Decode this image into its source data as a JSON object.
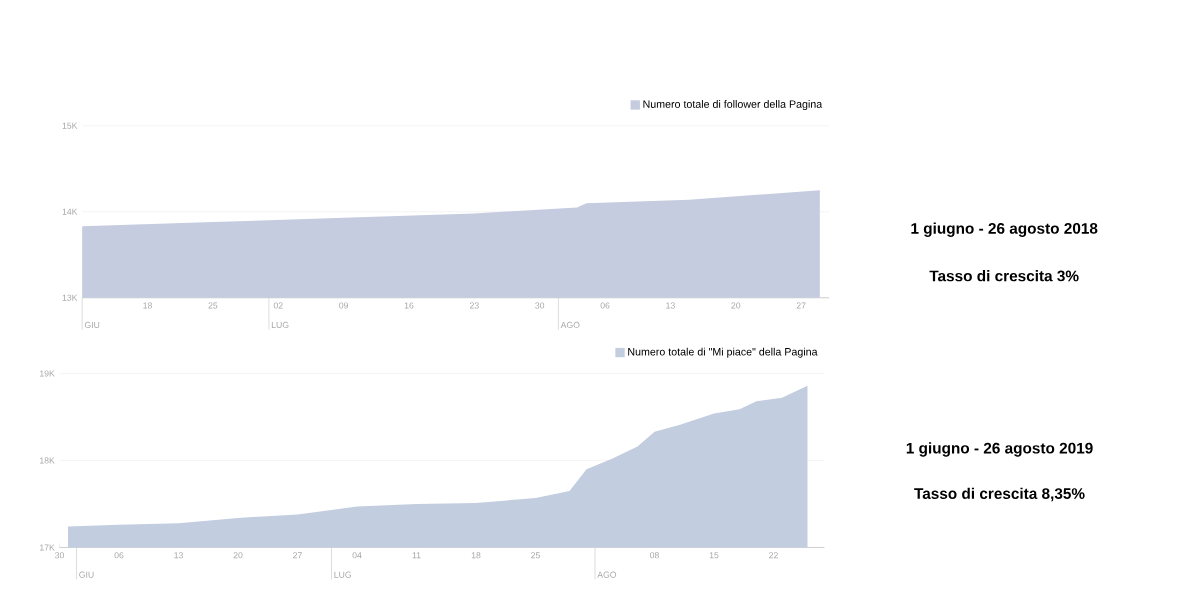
{
  "chart_data": [
    {
      "type": "area",
      "x": [
        "2018-06-11",
        "2018-06-25",
        "2018-07-09",
        "2018-07-23",
        "2018-08-03",
        "2018-08-04",
        "2018-08-15",
        "2018-08-29"
      ],
      "series": [
        {
          "name": "Numero totale di follower della Pagina",
          "color": "#c5cce0",
          "values": [
            13830,
            13880,
            13930,
            13980,
            14050,
            14100,
            14140,
            14250
          ]
        }
      ],
      "xlim": [
        "2018-06-11",
        "2018-08-30"
      ],
      "xticks": [
        {
          "value": "2018-06-18",
          "label": "18"
        },
        {
          "value": "2018-06-25",
          "label": "25"
        },
        {
          "value": "2018-07-02",
          "label": "02"
        },
        {
          "value": "2018-07-09",
          "label": "09"
        },
        {
          "value": "2018-07-16",
          "label": "16"
        },
        {
          "value": "2018-07-23",
          "label": "23"
        },
        {
          "value": "2018-07-30",
          "label": "30"
        },
        {
          "value": "2018-08-06",
          "label": "06"
        },
        {
          "value": "2018-08-13",
          "label": "13"
        },
        {
          "value": "2018-08-20",
          "label": "20"
        },
        {
          "value": "2018-08-27",
          "label": "27"
        }
      ],
      "ref_lines": [
        {
          "axis": "x",
          "value": "2018-06-11",
          "label": "GIU",
          "color": "#bfbfbf"
        },
        {
          "axis": "x",
          "value": "2018-07-01",
          "label": "LUG",
          "color": "#bfbfbf"
        },
        {
          "axis": "x",
          "value": "2018-08-01",
          "label": "AGO",
          "color": "#bfbfbf"
        }
      ],
      "ylim": [
        13000,
        15000
      ],
      "yticks": [
        {
          "value": 13000,
          "label": "13K"
        },
        {
          "value": 14000,
          "label": "14K"
        },
        {
          "value": 15000,
          "label": "15K"
        }
      ],
      "grid": "y",
      "legend": "top right",
      "annotations": [
        "1 giugno - 26 agosto 2018",
        "Tasso di crescita 3%"
      ]
    },
    {
      "type": "area",
      "x": [
        "2019-05-31",
        "2019-06-06",
        "2019-06-13",
        "2019-06-20",
        "2019-06-27",
        "2019-07-04",
        "2019-07-11",
        "2019-07-18",
        "2019-07-25",
        "2019-07-29",
        "2019-07-31",
        "2019-08-03",
        "2019-08-06",
        "2019-08-08",
        "2019-08-11",
        "2019-08-15",
        "2019-08-18",
        "2019-08-20",
        "2019-08-23",
        "2019-08-26"
      ],
      "series": [
        {
          "name": "Numero totale di \"Mi piace\" della Pagina",
          "color": "#c3cde0",
          "values": [
            17240,
            17260,
            17280,
            17340,
            17380,
            17470,
            17500,
            17510,
            17570,
            17650,
            17900,
            18020,
            18160,
            18330,
            18410,
            18540,
            18590,
            18680,
            18720,
            18860
          ]
        }
      ],
      "xlim": [
        "2019-05-30",
        "2019-08-28"
      ],
      "xticks": [
        {
          "value": "2019-05-30",
          "label": "30"
        },
        {
          "value": "2019-06-06",
          "label": "06"
        },
        {
          "value": "2019-06-13",
          "label": "13"
        },
        {
          "value": "2019-06-20",
          "label": "20"
        },
        {
          "value": "2019-06-27",
          "label": "27"
        },
        {
          "value": "2019-07-04",
          "label": "04"
        },
        {
          "value": "2019-07-11",
          "label": "11"
        },
        {
          "value": "2019-07-18",
          "label": "18"
        },
        {
          "value": "2019-07-25",
          "label": "25"
        },
        {
          "value": "2019-08-08",
          "label": "08"
        },
        {
          "value": "2019-08-15",
          "label": "15"
        },
        {
          "value": "2019-08-22",
          "label": "22"
        }
      ],
      "ref_lines": [
        {
          "axis": "x",
          "value": "2019-06-01",
          "label": "GIU",
          "color": "#bfbfbf"
        },
        {
          "axis": "x",
          "value": "2019-07-01",
          "label": "LUG",
          "color": "#bfbfbf"
        },
        {
          "axis": "x",
          "value": "2019-08-01",
          "label": "AGO",
          "color": "#bfbfbf"
        }
      ],
      "ylim": [
        17000,
        19000
      ],
      "yticks": [
        {
          "value": 17000,
          "label": "17K"
        },
        {
          "value": 18000,
          "label": "18K"
        },
        {
          "value": 19000,
          "label": "19K"
        }
      ],
      "grid": "y",
      "legend": "top right",
      "annotations": [
        "1 giugno - 26 agosto 2019",
        "Tasso di crescita 8,35%"
      ]
    }
  ]
}
